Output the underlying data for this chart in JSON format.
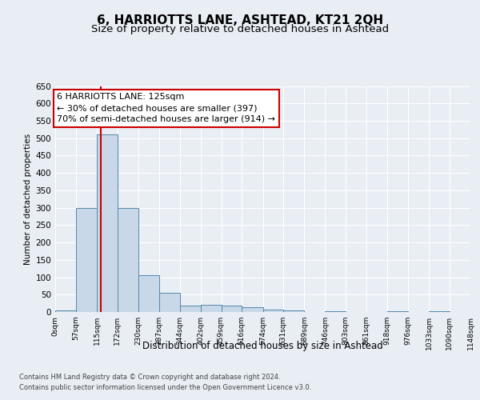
{
  "title": "6, HARRIOTTS LANE, ASHTEAD, KT21 2QH",
  "subtitle": "Size of property relative to detached houses in Ashtead",
  "xlabel": "Distribution of detached houses by size in Ashtead",
  "ylabel": "Number of detached properties",
  "footer_line1": "Contains HM Land Registry data © Crown copyright and database right 2024.",
  "footer_line2": "Contains public sector information licensed under the Open Government Licence v3.0.",
  "bin_edges": [
    0,
    57,
    115,
    172,
    230,
    287,
    344,
    402,
    459,
    516,
    574,
    631,
    689,
    746,
    803,
    861,
    918,
    976,
    1033,
    1090,
    1148
  ],
  "bar_heights": [
    5,
    300,
    510,
    300,
    105,
    55,
    18,
    20,
    18,
    13,
    8,
    5,
    0,
    2,
    0,
    0,
    2,
    0,
    2,
    0
  ],
  "bar_color": "#c8d8e8",
  "bar_edge_color": "#5588aa",
  "subject_size": 125,
  "vline_color": "#cc0000",
  "annotation_line1": "6 HARRIOTTS LANE: 125sqm",
  "annotation_line2": "← 30% of detached houses are smaller (397)",
  "annotation_line3": "70% of semi-detached houses are larger (914) →",
  "annotation_box_color": "#ffffff",
  "annotation_box_edge": "#cc0000",
  "ylim": [
    0,
    650
  ],
  "yticks": [
    0,
    50,
    100,
    150,
    200,
    250,
    300,
    350,
    400,
    450,
    500,
    550,
    600,
    650
  ],
  "background_color": "#e8eef4",
  "axes_bg_color": "#e8eef4",
  "grid_color": "#ffffff",
  "title_fontsize": 11,
  "subtitle_fontsize": 9.5,
  "annotation_fontsize": 8
}
